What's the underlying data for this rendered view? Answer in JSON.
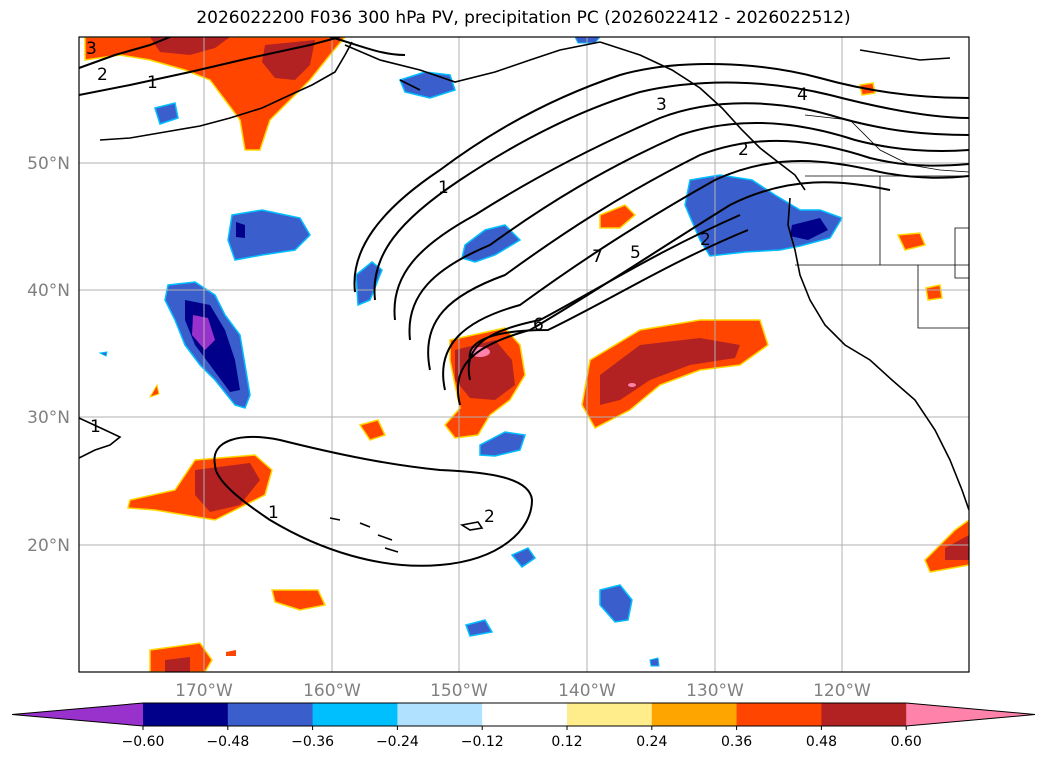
{
  "title": "2026022200 F036 300 hPa PV, precipitation PC (2026022412 - 2026022512)",
  "map": {
    "lat_labels": [
      "50°N",
      "40°N",
      "30°N",
      "20°N"
    ],
    "lon_labels": [
      "170°W",
      "160°W",
      "150°W",
      "140°W",
      "130°W",
      "120°W"
    ],
    "pv_contour_labels": [
      "3",
      "2",
      "1",
      "1",
      "3",
      "4",
      "2",
      "5",
      "7",
      "6",
      "2",
      "1",
      "1",
      "2"
    ]
  },
  "colorbar": {
    "ticks": [
      "−0.60",
      "−0.48",
      "−0.36",
      "−0.24",
      "−0.12",
      "0.12",
      "0.24",
      "0.36",
      "0.48",
      "0.60"
    ],
    "colors": [
      "#9932cc",
      "#00008b",
      "#3a5fcd",
      "#00bfff",
      "#b0e2ff",
      "#ffffff",
      "#ffec8b",
      "#ffa500",
      "#ff4500",
      "#b22222",
      "#ff82ab"
    ]
  }
}
